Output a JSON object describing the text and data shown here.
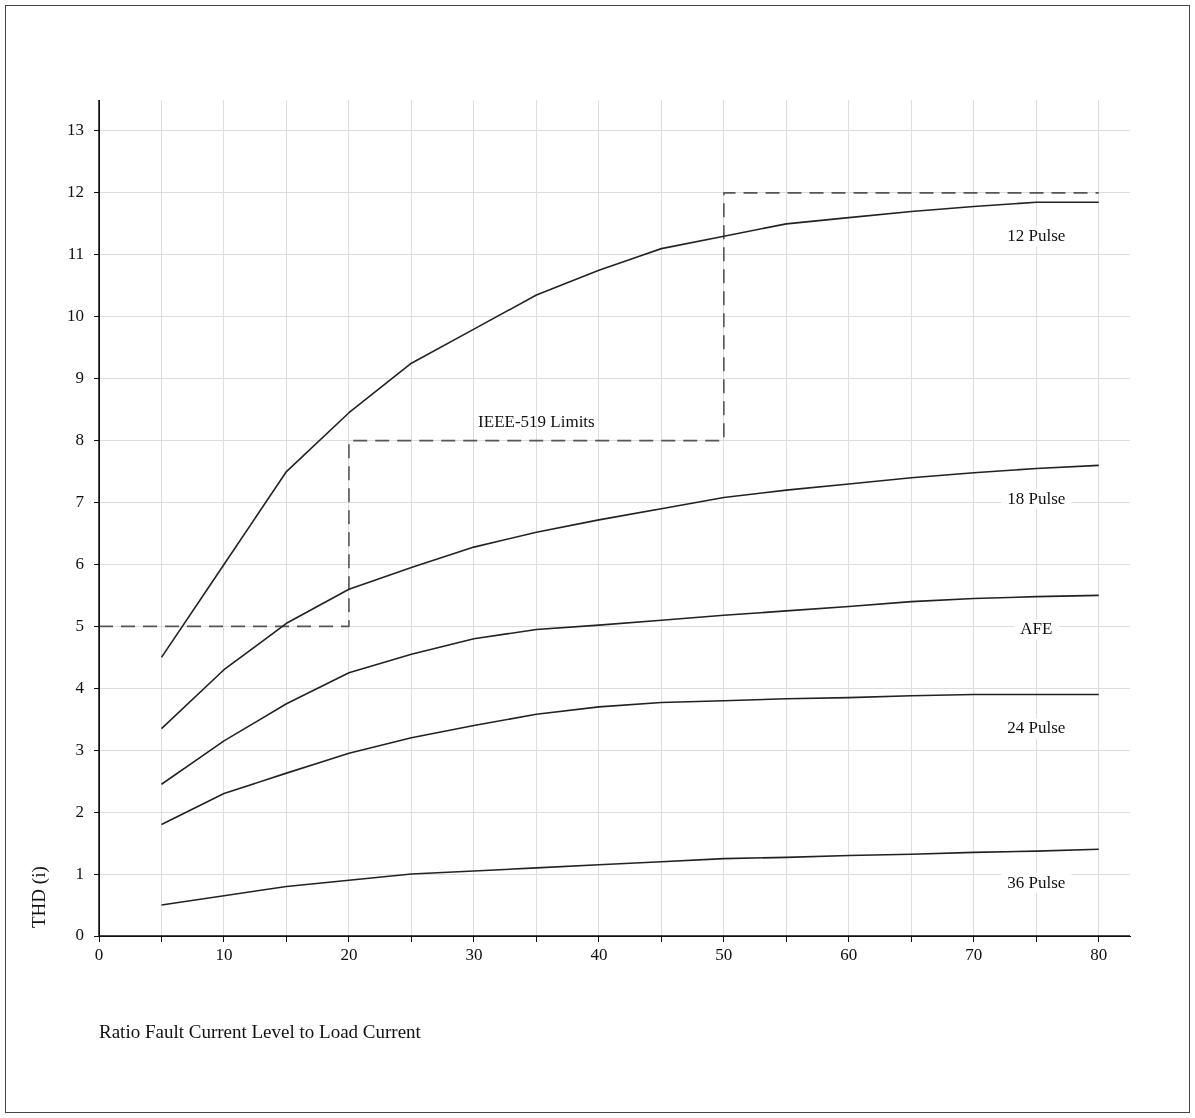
{
  "chart_data": {
    "type": "line",
    "xlabel": "Ratio Fault Current Level to Load Current",
    "ylabel": "THD (i)",
    "xlim": [
      0,
      82.5
    ],
    "ylim": [
      0,
      13.5
    ],
    "xticks": [
      0,
      {
        "value": 5,
        "label": null
      },
      10,
      {
        "value": 15,
        "label": null
      },
      20,
      {
        "value": 25,
        "label": null
      },
      30,
      {
        "value": 35,
        "label": null
      },
      40,
      {
        "value": 45,
        "label": null
      },
      50,
      {
        "value": 55,
        "label": null
      },
      60,
      {
        "value": 65,
        "label": null
      },
      70,
      {
        "value": 75,
        "label": null
      },
      80
    ],
    "yticks": [
      0,
      1,
      2,
      3,
      4,
      5,
      6,
      7,
      8,
      9,
      10,
      11,
      12,
      13
    ],
    "x": [
      5,
      10,
      15,
      20,
      25,
      30,
      35,
      40,
      45,
      50,
      55,
      60,
      65,
      70,
      75,
      80
    ],
    "grid": true,
    "legend": false,
    "marker": "none",
    "series": [
      {
        "name": "12 Pulse",
        "color": "#222222",
        "line_style": "solid",
        "values": [
          4.5,
          6.0,
          7.5,
          8.45,
          9.25,
          9.8,
          10.35,
          10.75,
          11.1,
          11.3,
          11.5,
          11.6,
          11.7,
          11.78,
          11.85,
          11.85
        ]
      },
      {
        "name": "18 Pulse",
        "color": "#222222",
        "line_style": "solid",
        "values": [
          3.35,
          4.3,
          5.05,
          5.6,
          5.95,
          6.28,
          6.52,
          6.72,
          6.9,
          7.08,
          7.2,
          7.3,
          7.4,
          7.48,
          7.55,
          7.6
        ]
      },
      {
        "name": "AFE",
        "color": "#222222",
        "line_style": "solid",
        "values": [
          2.45,
          3.15,
          3.75,
          4.25,
          4.55,
          4.8,
          4.95,
          5.02,
          5.1,
          5.18,
          5.25,
          5.32,
          5.4,
          5.45,
          5.48,
          5.5
        ]
      },
      {
        "name": "24 Pulse",
        "color": "#222222",
        "line_style": "solid",
        "values": [
          1.8,
          2.3,
          2.63,
          2.95,
          3.2,
          3.4,
          3.58,
          3.7,
          3.77,
          3.8,
          3.83,
          3.85,
          3.88,
          3.9,
          3.9,
          3.9
        ]
      },
      {
        "name": "36 Pulse",
        "color": "#222222",
        "line_style": "solid",
        "values": [
          0.5,
          0.65,
          0.8,
          0.9,
          1.0,
          1.05,
          1.1,
          1.15,
          1.2,
          1.25,
          1.27,
          1.3,
          1.32,
          1.35,
          1.37,
          1.4
        ]
      },
      {
        "name": "IEEE-519 Limits",
        "color": "#555555",
        "line_style": "dashed",
        "x": [
          0,
          20,
          20,
          50,
          50,
          80
        ],
        "values": [
          5,
          5,
          8,
          8,
          12,
          12
        ]
      }
    ]
  }
}
